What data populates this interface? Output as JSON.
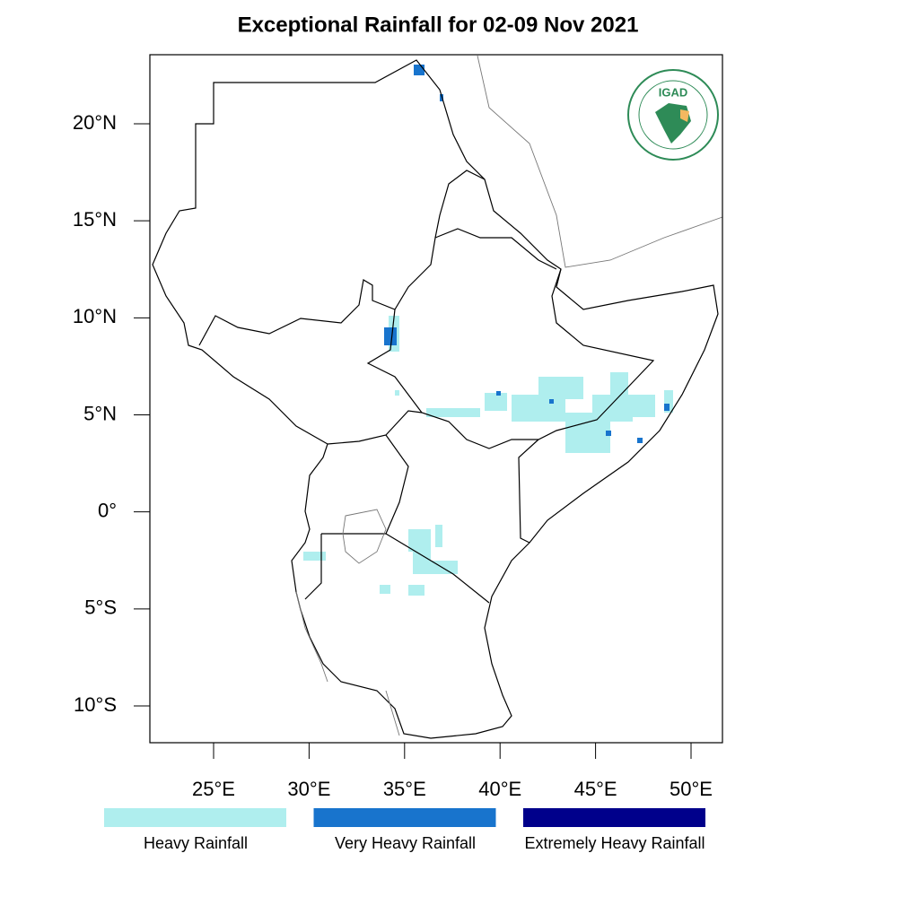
{
  "title": "Exceptional Rainfall for 02-09 Nov 2021",
  "logo": "IGAD",
  "lat_ticks": [
    {
      "value": 20,
      "label": "20°N"
    },
    {
      "value": 15,
      "label": "15°N"
    },
    {
      "value": 10,
      "label": "10°N"
    },
    {
      "value": 5,
      "label": "5°N"
    },
    {
      "value": 0,
      "label": "0°"
    },
    {
      "value": -5,
      "label": "5°S"
    },
    {
      "value": -10,
      "label": "10°S"
    }
  ],
  "lon_ticks": [
    {
      "value": 25,
      "label": "25°E"
    },
    {
      "value": 30,
      "label": "30°E"
    },
    {
      "value": 35,
      "label": "35°E"
    },
    {
      "value": 40,
      "label": "40°E"
    },
    {
      "value": 45,
      "label": "45°E"
    },
    {
      "value": 50,
      "label": "50°E"
    }
  ],
  "legend": [
    {
      "label": "Heavy Rainfall",
      "color": "#afeeee"
    },
    {
      "label": "Very Heavy Rainfall",
      "color": "#1874cd"
    },
    {
      "label": "Extremely Heavy Rainfall",
      "color": "#00008b"
    }
  ]
}
